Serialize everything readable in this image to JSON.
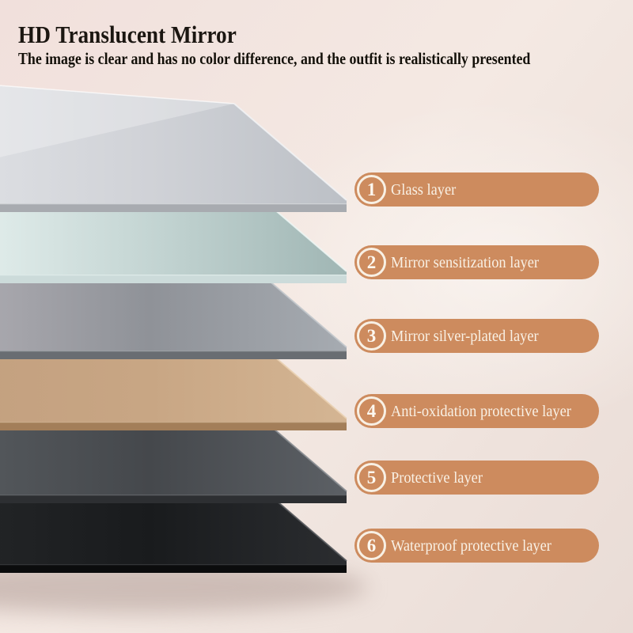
{
  "header": {
    "title": "HD Translucent Mirror",
    "subtitle": "The image is clear and has no color difference, and the outfit is realistically presented"
  },
  "badge": {
    "fill": "#cd8b5e",
    "ring": "#f8f0e4",
    "number_color": "#fdf8f0",
    "label_color": "#f9f1e5"
  },
  "background": {
    "top_left": "#f1e0dc",
    "middle": "#f4e9e3",
    "bottom_right": "#e9dcd6",
    "shadow": "#a8938c"
  },
  "layers": [
    {
      "number": "1",
      "label": "Glass layer",
      "face_left": "#dcdee2",
      "face_mid": "#d0d2d7",
      "face_right": "#bcc0c6",
      "thickness": "#a8abb0",
      "edge_highlight": "#f2f4f6"
    },
    {
      "number": "2",
      "label": "Mirror sensitization layer",
      "face_left": "#e0ecea",
      "face_mid": "#c4d5d3",
      "face_right": "#a0b6b4",
      "thickness": "#ccdbda",
      "edge_highlight": "#eef7f5"
    },
    {
      "number": "3",
      "label": "Mirror silver-plated layer",
      "face_left": "#a9a8ae",
      "face_mid": "#8f9298",
      "face_right": "#a6abb1",
      "thickness": "#696d72",
      "edge_highlight": "#c2c7cc"
    },
    {
      "number": "4",
      "label": "Anti-oxidation protective layer",
      "face_left": "#c4a180",
      "face_mid": "#c8a684",
      "face_right": "#d4b593",
      "thickness": "#a37e59",
      "edge_highlight": "#ead1b2"
    },
    {
      "number": "5",
      "label": "Protective layer",
      "face_left": "#53575b",
      "face_mid": "#45484c",
      "face_right": "#5c6065",
      "thickness": "#2d2f32",
      "edge_highlight": "#888c91"
    },
    {
      "number": "6",
      "label": "Waterproof protective layer",
      "face_left": "#222426",
      "face_mid": "#191b1d",
      "face_right": "#2b2d30",
      "thickness": "#0b0c0d",
      "edge_highlight": "#54575b"
    }
  ]
}
